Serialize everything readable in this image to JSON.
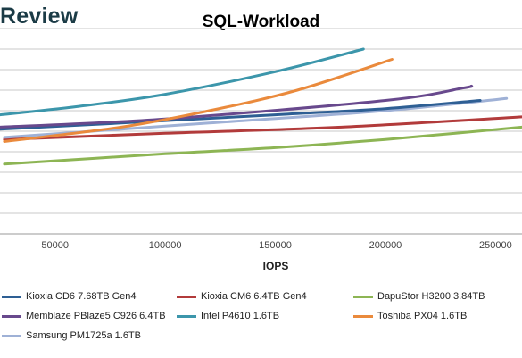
{
  "brand": "Review",
  "chart_data": {
    "type": "line",
    "title": "SQL-Workload",
    "xlabel": "IOPS",
    "ylabel": "",
    "xlim": [
      25000,
      262000
    ],
    "ylim": [
      0,
      10
    ],
    "xticks": [
      50000,
      100000,
      150000,
      200000,
      250000
    ],
    "xtick_labels": [
      "50000",
      "100000",
      "150000",
      "200000",
      "250000"
    ],
    "yticks": [
      0,
      1,
      2,
      3,
      4,
      5,
      6,
      7,
      8,
      9,
      10
    ],
    "grid": true,
    "legend_position": "bottom",
    "series": [
      {
        "name": "Kioxia CD6 7.68TB Gen4",
        "color": "#2e5f94",
        "points": [
          [
            25000,
            5.1
          ],
          [
            80000,
            5.4
          ],
          [
            150000,
            5.8
          ],
          [
            200000,
            6.1
          ],
          [
            243000,
            6.5
          ]
        ]
      },
      {
        "name": "Kioxia CM6 6.4TB Gen4",
        "color": "#b23b3b",
        "points": [
          [
            27000,
            4.6
          ],
          [
            100000,
            4.9
          ],
          [
            180000,
            5.2
          ],
          [
            262000,
            5.7
          ]
        ]
      },
      {
        "name": "DapuStor H3200 3.84TB",
        "color": "#8db554",
        "points": [
          [
            27000,
            3.4
          ],
          [
            100000,
            3.9
          ],
          [
            150000,
            4.2
          ],
          [
            200000,
            4.6
          ],
          [
            262000,
            5.2
          ]
        ]
      },
      {
        "name": "Memblaze PBlaze5 C926 6.4TB",
        "color": "#68498d",
        "points": [
          [
            25000,
            5.2
          ],
          [
            100000,
            5.6
          ],
          [
            200000,
            6.5
          ],
          [
            235000,
            7.1
          ],
          [
            239000,
            7.2
          ]
        ]
      },
      {
        "name": "Intel P4610 1.6TB",
        "color": "#3c96ab",
        "points": [
          [
            25000,
            5.8
          ],
          [
            60000,
            6.2
          ],
          [
            100000,
            6.8
          ],
          [
            150000,
            7.9
          ],
          [
            190000,
            9.0
          ]
        ]
      },
      {
        "name": "Toshiba PX04 1.6TB",
        "color": "#ea8a3c",
        "points": [
          [
            27000,
            4.5
          ],
          [
            80000,
            5.2
          ],
          [
            120000,
            6.0
          ],
          [
            160000,
            7.0
          ],
          [
            203000,
            8.5
          ]
        ]
      },
      {
        "name": "Samsung PM1725a 1.6TB",
        "color": "#9fb1d6",
        "points": [
          [
            27000,
            4.7
          ],
          [
            120000,
            5.4
          ],
          [
            200000,
            6.0
          ],
          [
            255000,
            6.6
          ]
        ]
      }
    ]
  }
}
